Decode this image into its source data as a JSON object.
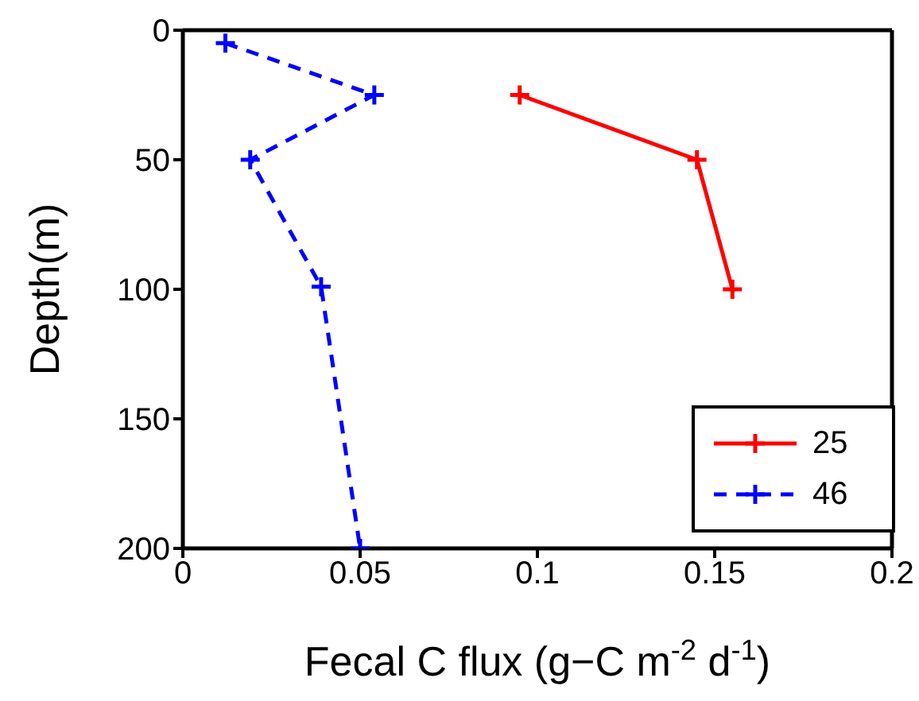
{
  "chart_data": {
    "type": "line",
    "xlabel": "Fecal C flux (g−C m$^{-2}$ d$^{-1}$)",
    "ylabel": "Depth(m)",
    "series": [
      {
        "name": "25",
        "color": "#ff0000",
        "line_style": "solid",
        "x": [
          0.095,
          0.145,
          0.155
        ],
        "values": [
          25,
          50,
          100
        ]
      },
      {
        "name": "46",
        "color": "#0000ff",
        "line_style": "dashed",
        "x": [
          0.012,
          0.054,
          0.019,
          0.039,
          0.05
        ],
        "values": [
          5,
          25,
          50,
          99,
          200
        ]
      }
    ],
    "xlim": [
      0,
      0.2
    ],
    "xticks": [
      0,
      0.05,
      0.1,
      0.15,
      0.2
    ],
    "ylim": [
      200,
      0
    ],
    "yticks": [
      0,
      50,
      100,
      150,
      200
    ],
    "marker": "cross",
    "legend": "bottom right",
    "grid": false
  }
}
